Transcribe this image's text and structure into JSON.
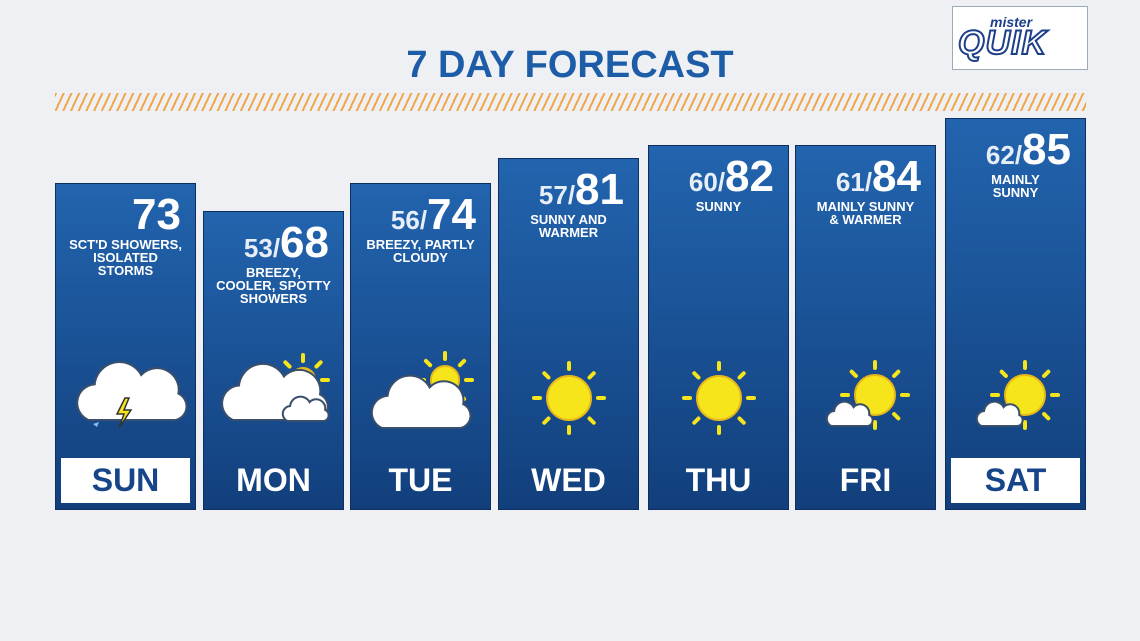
{
  "header": {
    "title": "7 DAY FORECAST",
    "logo": {
      "top": "mister",
      "main": "QUIK"
    }
  },
  "separator": "/",
  "days": [
    {
      "day": "SUN",
      "high": "73",
      "description": [
        "SCT'D SHOWERS,",
        "ISOLATED",
        "STORMS"
      ]
    },
    {
      "day": "MON",
      "low": "53",
      "high": "68",
      "description": [
        "BREEZY,",
        "COOLER, SPOTTY",
        "SHOWERS"
      ]
    },
    {
      "day": "TUE",
      "low": "56",
      "high": "74",
      "description": [
        "BREEZY, PARTLY",
        "CLOUDY"
      ]
    },
    {
      "day": "WED",
      "low": "57",
      "high": "81",
      "description": [
        "SUNNY AND",
        "WARMER"
      ]
    },
    {
      "day": "THU",
      "low": "60",
      "high": "82",
      "description": [
        "SUNNY"
      ]
    },
    {
      "day": "FRI",
      "low": "61",
      "high": "84",
      "description": [
        "MAINLY SUNNY",
        "& WARMER"
      ]
    },
    {
      "day": "SAT",
      "low": "62",
      "high": "85",
      "description": [
        "MAINLY",
        "SUNNY"
      ]
    }
  ]
}
